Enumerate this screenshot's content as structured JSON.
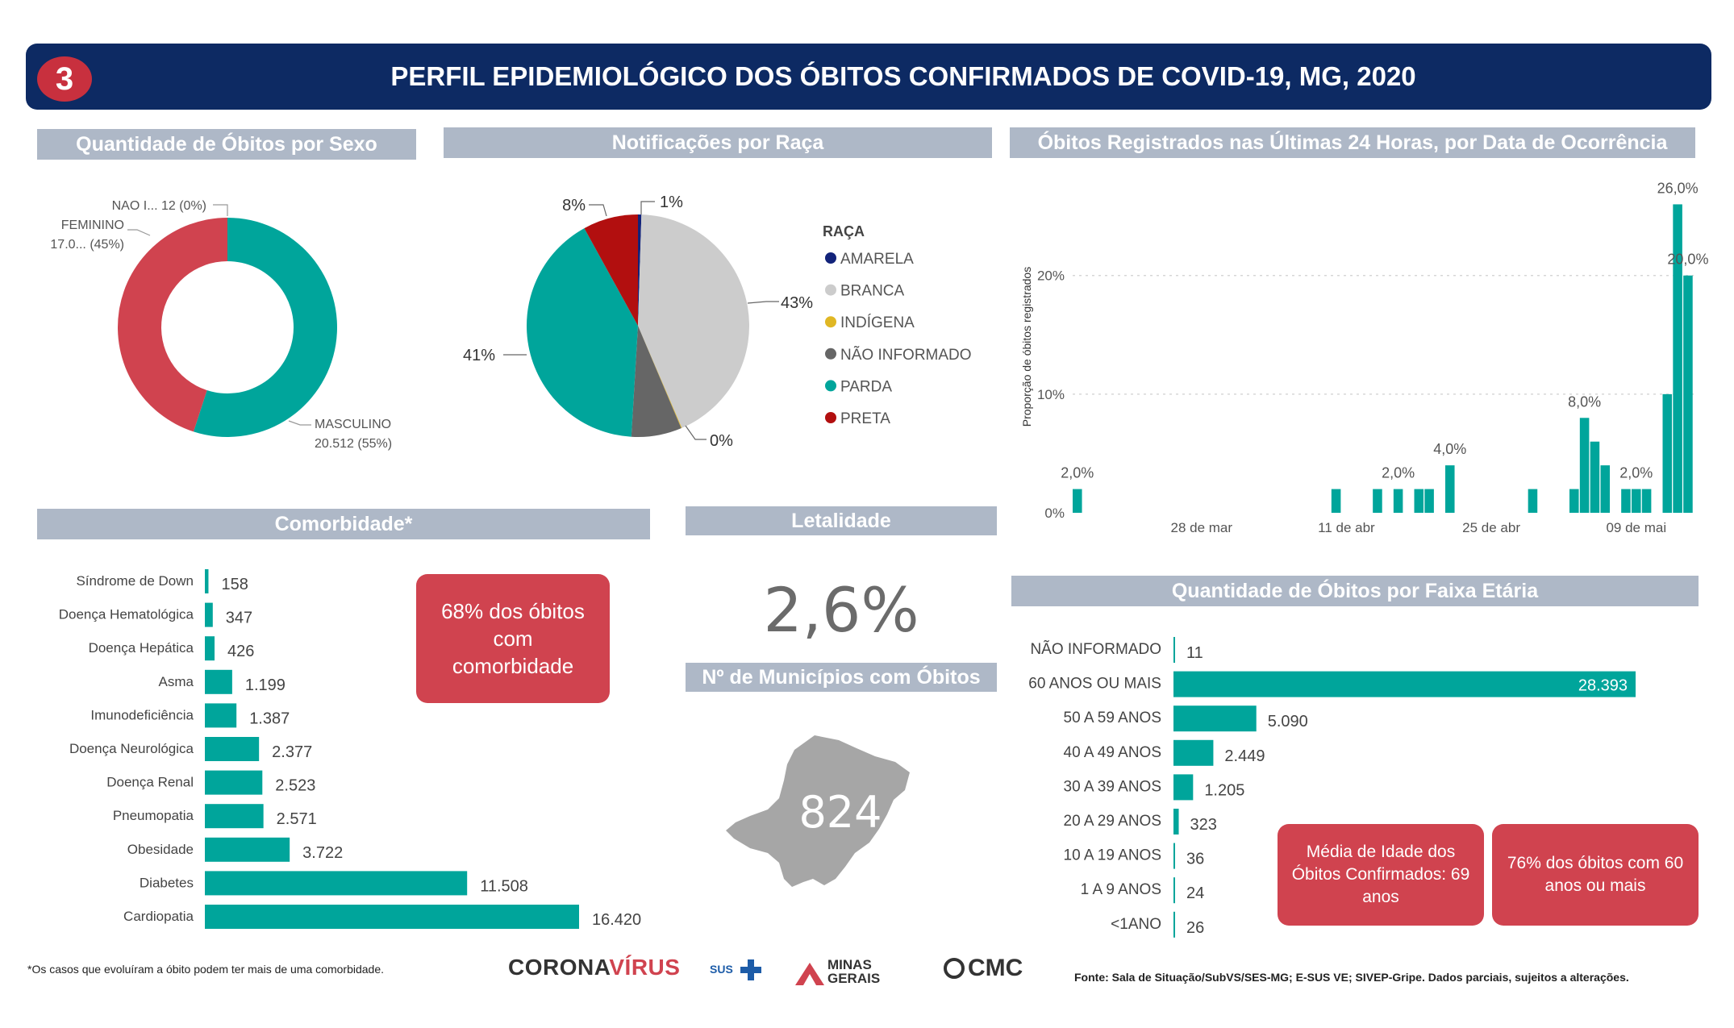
{
  "header": {
    "badge": "3",
    "title": "PERFIL EPIDEMIOLÓGICO DOS ÓBITOS CONFIRMADOS DE COVID-19, MG, 2020"
  },
  "sections": {
    "sexo": "Quantidade de Óbitos por Sexo",
    "raca": "Notificações por Raça",
    "ultimas24": "Óbitos Registrados nas Últimas 24 Horas, por Data de Ocorrência",
    "comorbidade": "Comorbidade*",
    "letalidade": "Letalidade",
    "municipios": "Nº de Municípios com Óbitos",
    "faixa": "Quantidade de Óbitos por Faixa Etária"
  },
  "kpis": {
    "letalidade": "2,6%",
    "municipios": "824"
  },
  "callouts": {
    "comorbidade": "68% dos óbitos com comorbidade",
    "media_idade": "Média de Idade dos Óbitos Confirmados: 69 anos",
    "sessenta": "76% dos óbitos com 60 anos ou mais"
  },
  "footer": {
    "note": "*Os casos que evoluíram a óbito podem ter mais de uma comorbidade.",
    "source": "Fonte: Sala de Situação/SubVS/SES-MG; E-SUS VE; SIVEP-Gripe. Dados parciais, sujeitos a alterações.",
    "logo_corona_a": "CORONA",
    "logo_corona_b": "VÍRUS",
    "logo_sus": "SUS",
    "logo_minas": "MINAS GERAIS",
    "logo_cmc": "CMC"
  },
  "colors": {
    "teal": "#00a59b",
    "red": "#d0434f",
    "navy": "#0d2a63",
    "section_bg": "#aeb8c7"
  },
  "chart_data": [
    {
      "id": "sexo",
      "type": "pie",
      "donut": true,
      "slices": [
        {
          "label": "MASCULINO",
          "value_text": "20.512 (55%)",
          "percent": 55,
          "color": "#00a59b"
        },
        {
          "label": "FEMININO",
          "value_text": "17.0... (45%)",
          "percent": 45,
          "color": "#d0434f"
        },
        {
          "label": "NAO I...",
          "value_text": "12 (0%)",
          "percent": 0,
          "color": "#aeb8c7"
        }
      ]
    },
    {
      "id": "raca",
      "type": "pie",
      "legend_title": "RAÇA",
      "slices": [
        {
          "label": "AMARELA",
          "percent": 0.5,
          "percent_label": "1%",
          "color": "#12237a"
        },
        {
          "label": "BRANCA",
          "percent": 43,
          "percent_label": "43%",
          "color": "#cccccc"
        },
        {
          "label": "INDÍGENA",
          "percent": 0.1,
          "percent_label": "0%",
          "color": "#e0b724"
        },
        {
          "label": "NÃO INFORMADO",
          "percent": 7.3,
          "percent_label": "",
          "color": "#666666"
        },
        {
          "label": "PARDA",
          "percent": 41,
          "percent_label": "41%",
          "color": "#00a59b"
        },
        {
          "label": "PRETA",
          "percent": 8,
          "percent_label": "8%",
          "color": "#b20f0f"
        }
      ]
    },
    {
      "id": "ultimas24",
      "type": "bar",
      "ylabel": "Proporção de óbitos registrados",
      "ylim": [
        0,
        28
      ],
      "yticks": [
        0,
        10,
        20
      ],
      "ytick_labels": [
        "0%",
        "10%",
        "20%"
      ],
      "x_start": "2020-03-16",
      "xticks": [
        {
          "date": "2020-03-28",
          "label": "28 de mar"
        },
        {
          "date": "2020-04-11",
          "label": "11 de abr"
        },
        {
          "date": "2020-04-25",
          "label": "25 de abr"
        },
        {
          "date": "2020-05-09",
          "label": "09 de mai"
        }
      ],
      "series": [
        {
          "points": [
            {
              "date": "2020-03-16",
              "value": 2
            },
            {
              "date": "2020-04-10",
              "value": 2
            },
            {
              "date": "2020-04-14",
              "value": 2
            },
            {
              "date": "2020-04-16",
              "value": 2
            },
            {
              "date": "2020-04-18",
              "value": 2
            },
            {
              "date": "2020-04-19",
              "value": 2
            },
            {
              "date": "2020-04-21",
              "value": 4
            },
            {
              "date": "2020-04-29",
              "value": 2
            },
            {
              "date": "2020-05-03",
              "value": 2
            },
            {
              "date": "2020-05-04",
              "value": 8
            },
            {
              "date": "2020-05-05",
              "value": 6
            },
            {
              "date": "2020-05-06",
              "value": 4
            },
            {
              "date": "2020-05-08",
              "value": 2
            },
            {
              "date": "2020-05-09",
              "value": 2
            },
            {
              "date": "2020-05-10",
              "value": 2
            },
            {
              "date": "2020-05-12",
              "value": 10
            },
            {
              "date": "2020-05-13",
              "value": 26
            },
            {
              "date": "2020-05-14",
              "value": 20
            }
          ]
        }
      ],
      "data_labels": [
        {
          "date": "2020-03-16",
          "text": "2,0%"
        },
        {
          "date": "2020-04-16",
          "text": "2,0%"
        },
        {
          "date": "2020-04-21",
          "text": "4,0%"
        },
        {
          "date": "2020-05-04",
          "text": "8,0%"
        },
        {
          "date": "2020-05-09",
          "text": "2,0%"
        },
        {
          "date": "2020-05-13",
          "text": "26,0%"
        },
        {
          "date": "2020-05-14",
          "text": "20,0%"
        }
      ]
    },
    {
      "id": "comorbidade",
      "type": "bar",
      "orientation": "horizontal",
      "categories": [
        "Síndrome de Down",
        "Doença Hematológica",
        "Doença Hepática",
        "Asma",
        "Imunodeficiência",
        "Doença Neurológica",
        "Doença Renal",
        "Pneumopatia",
        "Obesidade",
        "Diabetes",
        "Cardiopatia"
      ],
      "values": [
        158,
        347,
        426,
        1199,
        1387,
        2377,
        2523,
        2571,
        3722,
        11508,
        16420
      ],
      "value_labels": [
        "158",
        "347",
        "426",
        "1.199",
        "1.387",
        "2.377",
        "2.523",
        "2.571",
        "3.722",
        "11.508",
        "16.420"
      ]
    },
    {
      "id": "faixa",
      "type": "bar",
      "orientation": "horizontal",
      "categories": [
        "NÃO INFORMADO",
        "60 ANOS OU MAIS",
        "50 A 59 ANOS",
        "40 A 49 ANOS",
        "30 A 39 ANOS",
        "20 A 29 ANOS",
        "10 A 19 ANOS",
        "1 A 9 ANOS",
        "<1ANO"
      ],
      "values": [
        11,
        28393,
        5090,
        2449,
        1205,
        323,
        36,
        24,
        26
      ],
      "value_labels": [
        "11",
        "28.393",
        "5.090",
        "2.449",
        "1.205",
        "323",
        "36",
        "24",
        "26"
      ]
    }
  ]
}
